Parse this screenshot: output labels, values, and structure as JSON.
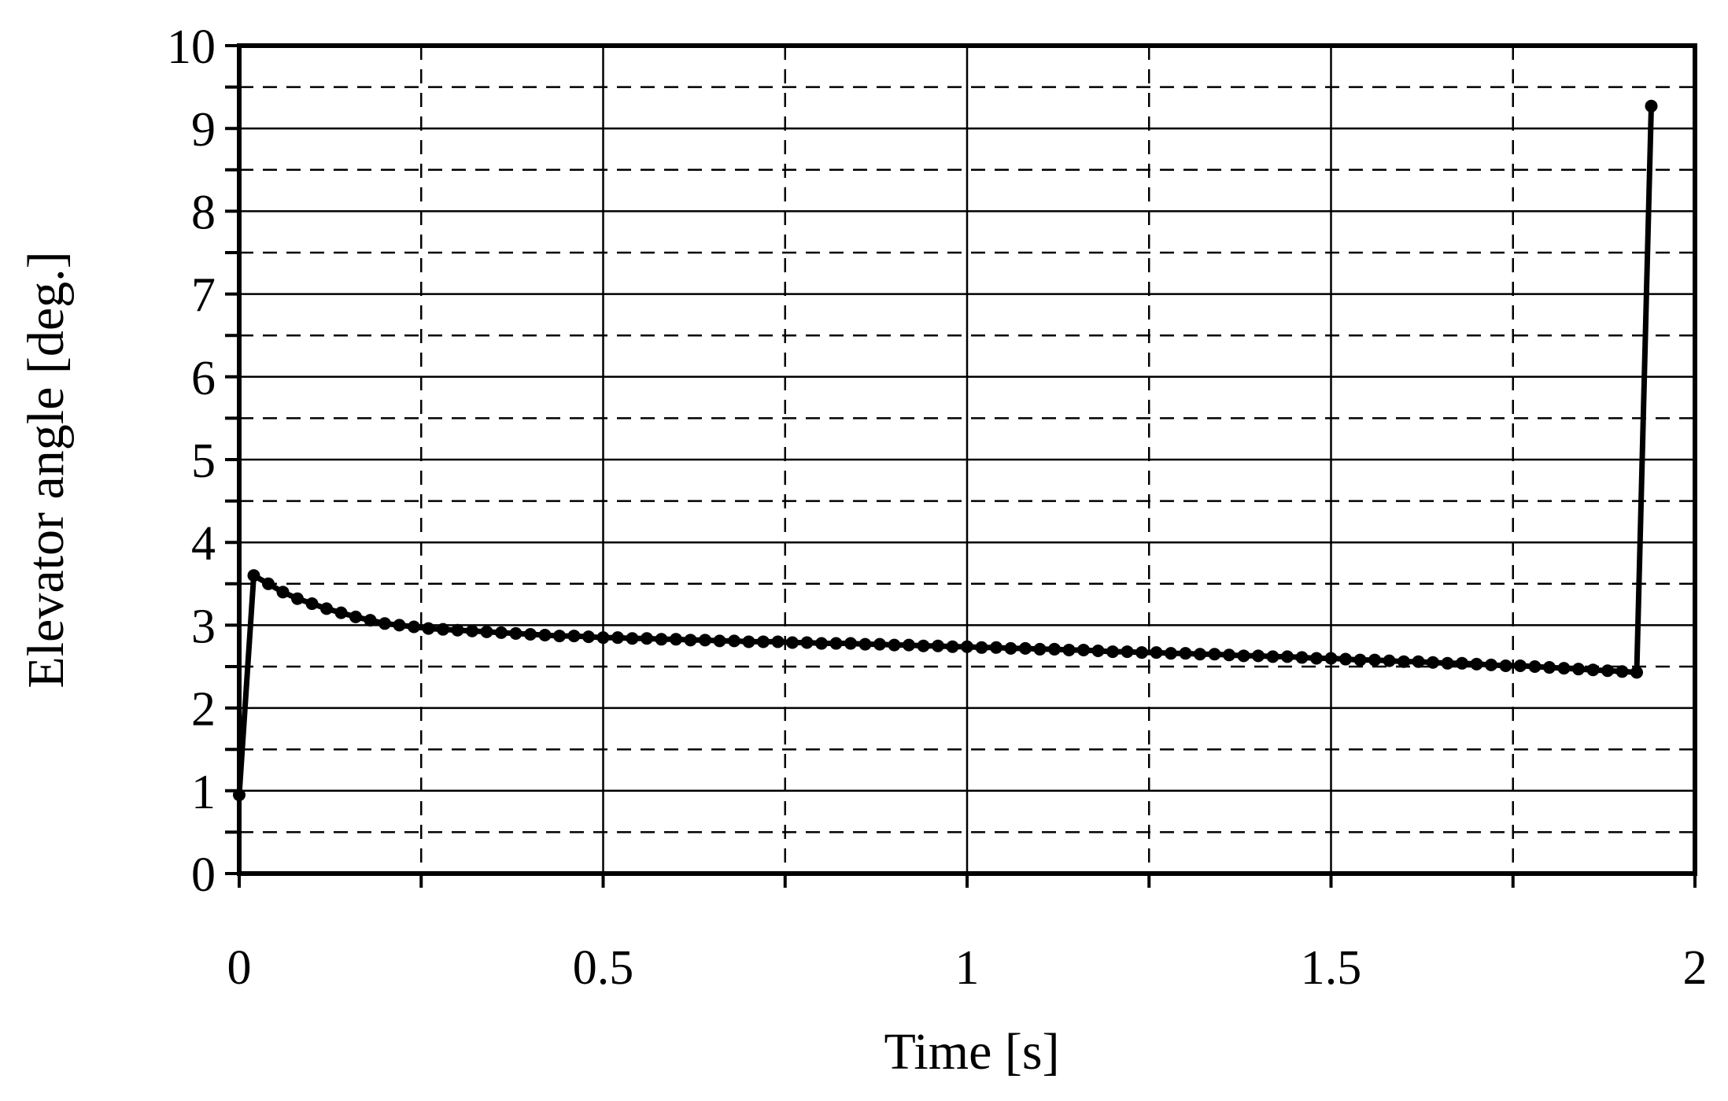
{
  "chart_data": {
    "type": "line",
    "title": "",
    "xlabel": "Time [s]",
    "ylabel": "Elevator angle [deg.]",
    "xlim": [
      0,
      2
    ],
    "ylim": [
      0,
      10
    ],
    "x_ticks": [
      0,
      0.5,
      1,
      1.5,
      2
    ],
    "x_tick_labels": [
      "0",
      "0.5",
      "1",
      "1.5",
      "2"
    ],
    "x_minor_step": 0.25,
    "y_ticks": [
      0,
      1,
      2,
      3,
      4,
      5,
      6,
      7,
      8,
      9,
      10
    ],
    "y_tick_labels": [
      "0",
      "1",
      "2",
      "3",
      "4",
      "5",
      "6",
      "7",
      "8",
      "9",
      "10"
    ],
    "y_minor_step": 0.5,
    "grid": true,
    "legend": "none",
    "colors": {
      "series": "#000000",
      "grid": "#000000",
      "axes": "#000000"
    },
    "series": [
      {
        "marker": "circle",
        "x": [
          0,
          0.02,
          0.04,
          0.06,
          0.08,
          0.1,
          0.12,
          0.14,
          0.16,
          0.18,
          0.2,
          0.22,
          0.24,
          0.26,
          0.28,
          0.3,
          0.32,
          0.34,
          0.36,
          0.38,
          0.4,
          0.42,
          0.44,
          0.46,
          0.48,
          0.5,
          0.52,
          0.54,
          0.56,
          0.58,
          0.6,
          0.62,
          0.64,
          0.66,
          0.68,
          0.7,
          0.72,
          0.74,
          0.76,
          0.78,
          0.8,
          0.82,
          0.84,
          0.86,
          0.88,
          0.9,
          0.92,
          0.94,
          0.96,
          0.98,
          1.0,
          1.02,
          1.04,
          1.06,
          1.08,
          1.1,
          1.12,
          1.14,
          1.16,
          1.18,
          1.2,
          1.22,
          1.24,
          1.26,
          1.28,
          1.3,
          1.32,
          1.34,
          1.36,
          1.38,
          1.4,
          1.42,
          1.44,
          1.46,
          1.48,
          1.5,
          1.52,
          1.54,
          1.56,
          1.58,
          1.6,
          1.62,
          1.64,
          1.66,
          1.68,
          1.7,
          1.72,
          1.74,
          1.76,
          1.78,
          1.8,
          1.82,
          1.84,
          1.86,
          1.88,
          1.9,
          1.92,
          1.94
        ],
        "y": [
          0.95,
          3.6,
          3.5,
          3.4,
          3.32,
          3.26,
          3.2,
          3.15,
          3.1,
          3.06,
          3.02,
          3.0,
          2.98,
          2.96,
          2.95,
          2.94,
          2.93,
          2.92,
          2.91,
          2.9,
          2.89,
          2.88,
          2.87,
          2.87,
          2.86,
          2.85,
          2.85,
          2.84,
          2.84,
          2.83,
          2.83,
          2.82,
          2.82,
          2.81,
          2.81,
          2.8,
          2.8,
          2.8,
          2.79,
          2.79,
          2.78,
          2.78,
          2.78,
          2.77,
          2.77,
          2.76,
          2.76,
          2.75,
          2.75,
          2.74,
          2.74,
          2.73,
          2.73,
          2.72,
          2.72,
          2.71,
          2.71,
          2.7,
          2.7,
          2.69,
          2.68,
          2.68,
          2.67,
          2.67,
          2.66,
          2.66,
          2.65,
          2.65,
          2.64,
          2.63,
          2.63,
          2.62,
          2.62,
          2.61,
          2.6,
          2.6,
          2.59,
          2.58,
          2.58,
          2.57,
          2.56,
          2.56,
          2.55,
          2.54,
          2.54,
          2.53,
          2.52,
          2.51,
          2.51,
          2.5,
          2.49,
          2.48,
          2.47,
          2.46,
          2.45,
          2.44,
          2.43,
          9.27
        ]
      }
    ]
  }
}
